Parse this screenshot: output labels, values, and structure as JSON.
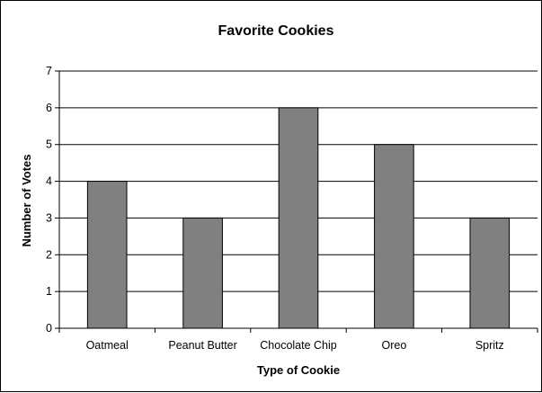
{
  "chart_data": {
    "type": "bar",
    "title": "Favorite Cookies",
    "xlabel": "Type of Cookie",
    "ylabel": "Number of Votes",
    "categories": [
      "Oatmeal",
      "Peanut Butter",
      "Chocolate Chip",
      "Oreo",
      "Spritz"
    ],
    "values": [
      4,
      3,
      6,
      5,
      3
    ],
    "ylim": [
      0,
      7
    ],
    "yticks": [
      "0",
      "1",
      "2",
      "3",
      "4",
      "5",
      "6",
      "7"
    ],
    "grid": "horizontal",
    "legend": "none",
    "colors": {
      "bar_fill": "#808080",
      "bar_stroke": "#000000",
      "gridline": "#000000",
      "axis": "#000000",
      "background": "#ffffff"
    }
  }
}
